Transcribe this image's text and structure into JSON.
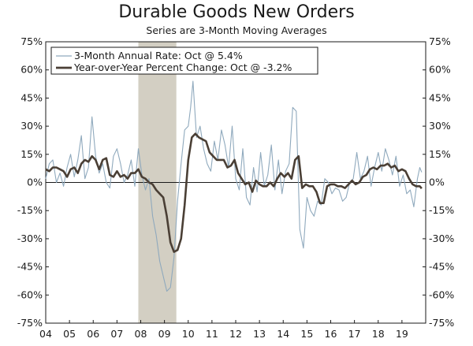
{
  "chart_data": {
    "type": "line",
    "title": "Durable Goods New Orders",
    "subtitle": "Series are 3-Month Moving Averages",
    "y_ticks": [
      "75%",
      "60%",
      "45%",
      "30%",
      "15%",
      "0%",
      "-15%",
      "-30%",
      "-45%",
      "-60%",
      "-75%"
    ],
    "x_ticks": [
      "04",
      "05",
      "06",
      "07",
      "08",
      "09",
      "10",
      "11",
      "12",
      "13",
      "14",
      "15",
      "16",
      "17",
      "18",
      "19"
    ],
    "ylim": [
      -75,
      75
    ],
    "xlim": [
      2004.0,
      2020.0
    ],
    "recession": {
      "start": 2007.9,
      "end": 2009.5
    },
    "colors": {
      "annual_rate": "#8fa9bd",
      "yoy": "#4a3f35",
      "recession": "#d3cfc3",
      "axis": "#1a1a1a"
    },
    "series": [
      {
        "name": "3-Month Annual Rate: Oct @ 5.4%",
        "x": [
          2004.0,
          2004.15,
          2004.3,
          2004.45,
          2004.6,
          2004.75,
          2004.9,
          2005.05,
          2005.2,
          2005.35,
          2005.5,
          2005.65,
          2005.8,
          2005.95,
          2006.1,
          2006.25,
          2006.4,
          2006.55,
          2006.7,
          2006.85,
          2007.0,
          2007.15,
          2007.3,
          2007.45,
          2007.6,
          2007.75,
          2007.9,
          2008.05,
          2008.2,
          2008.35,
          2008.5,
          2008.65,
          2008.8,
          2008.95,
          2009.1,
          2009.25,
          2009.4,
          2009.55,
          2009.7,
          2009.85,
          2010.0,
          2010.1,
          2010.2,
          2010.35,
          2010.5,
          2010.65,
          2010.8,
          2010.95,
          2011.1,
          2011.25,
          2011.4,
          2011.55,
          2011.7,
          2011.85,
          2012.0,
          2012.15,
          2012.3,
          2012.45,
          2012.6,
          2012.75,
          2012.9,
          2013.05,
          2013.2,
          2013.35,
          2013.5,
          2013.65,
          2013.8,
          2013.95,
          2014.1,
          2014.25,
          2014.4,
          2014.55,
          2014.7,
          2014.85,
          2015.0,
          2015.15,
          2015.3,
          2015.45,
          2015.6,
          2015.75,
          2015.9,
          2016.05,
          2016.2,
          2016.35,
          2016.5,
          2016.65,
          2016.8,
          2016.95,
          2017.1,
          2017.25,
          2017.4,
          2017.55,
          2017.7,
          2017.85,
          2018.0,
          2018.15,
          2018.3,
          2018.45,
          2018.6,
          2018.75,
          2018.9,
          2019.05,
          2019.2,
          2019.35,
          2019.5,
          2019.65,
          2019.75,
          2019.83
        ],
        "values": [
          2,
          10,
          12,
          0,
          5,
          -2,
          8,
          15,
          3,
          12,
          25,
          2,
          8,
          35,
          14,
          5,
          10,
          0,
          -3,
          14,
          18,
          10,
          0,
          4,
          12,
          -2,
          18,
          4,
          -4,
          2,
          -18,
          -28,
          -42,
          -50,
          -58,
          -56,
          -40,
          -10,
          10,
          28,
          30,
          40,
          54,
          24,
          30,
          18,
          10,
          6,
          22,
          12,
          28,
          20,
          8,
          30,
          2,
          -4,
          18,
          -8,
          -12,
          8,
          -5,
          16,
          -2,
          4,
          20,
          -4,
          12,
          -6,
          6,
          10,
          40,
          38,
          -25,
          -35,
          -8,
          -15,
          -18,
          -10,
          -12,
          2,
          0,
          -6,
          -3,
          -4,
          -10,
          -8,
          0,
          2,
          16,
          2,
          6,
          14,
          -2,
          8,
          16,
          6,
          18,
          12,
          4,
          14,
          -2,
          4,
          -6,
          -4,
          -13,
          2,
          8,
          5.4
        ]
      },
      {
        "name": "Year-over-Year Percent Change: Oct @ -3.2%",
        "x": [
          2004.0,
          2004.15,
          2004.3,
          2004.45,
          2004.6,
          2004.75,
          2004.9,
          2005.05,
          2005.2,
          2005.35,
          2005.5,
          2005.65,
          2005.8,
          2005.95,
          2006.1,
          2006.25,
          2006.4,
          2006.55,
          2006.7,
          2006.85,
          2007.0,
          2007.15,
          2007.3,
          2007.45,
          2007.6,
          2007.75,
          2007.9,
          2008.05,
          2008.2,
          2008.35,
          2008.5,
          2008.65,
          2008.8,
          2008.95,
          2009.1,
          2009.25,
          2009.4,
          2009.55,
          2009.7,
          2009.85,
          2010.0,
          2010.15,
          2010.3,
          2010.45,
          2010.6,
          2010.75,
          2010.9,
          2011.05,
          2011.2,
          2011.35,
          2011.5,
          2011.65,
          2011.8,
          2011.95,
          2012.1,
          2012.25,
          2012.4,
          2012.55,
          2012.7,
          2012.85,
          2013.0,
          2013.15,
          2013.3,
          2013.45,
          2013.6,
          2013.75,
          2013.9,
          2014.05,
          2014.2,
          2014.35,
          2014.5,
          2014.65,
          2014.8,
          2014.95,
          2015.1,
          2015.25,
          2015.4,
          2015.55,
          2015.7,
          2015.85,
          2016.0,
          2016.15,
          2016.3,
          2016.45,
          2016.6,
          2016.75,
          2016.9,
          2017.05,
          2017.2,
          2017.35,
          2017.5,
          2017.65,
          2017.8,
          2017.95,
          2018.1,
          2018.25,
          2018.4,
          2018.55,
          2018.7,
          2018.85,
          2019.0,
          2019.15,
          2019.3,
          2019.45,
          2019.6,
          2019.75,
          2019.83
        ],
        "values": [
          7,
          6,
          8,
          8,
          7,
          6,
          3,
          7,
          8,
          5,
          10,
          12,
          11,
          14,
          12,
          7,
          12,
          13,
          4,
          3,
          6,
          3,
          4,
          2,
          5,
          5,
          7,
          3,
          2,
          0,
          -1,
          -4,
          -6,
          -8,
          -18,
          -32,
          -37,
          -36,
          -30,
          -12,
          12,
          24,
          26,
          24,
          23,
          22,
          16,
          14,
          12,
          12,
          12,
          8,
          9,
          12,
          5,
          2,
          -1,
          0,
          -5,
          1,
          -1,
          -2,
          -2,
          0,
          -2,
          2,
          5,
          3,
          5,
          2,
          12,
          14,
          -3,
          -1,
          -2,
          -2,
          -5,
          -11,
          -11,
          -2,
          -1,
          -1,
          -2,
          -2,
          -3,
          -1,
          1,
          -1,
          0,
          3,
          4,
          7,
          8,
          7,
          9,
          9,
          10,
          8,
          9,
          6,
          7,
          6,
          2,
          -1,
          -2,
          -2,
          -3.2
        ]
      }
    ]
  }
}
